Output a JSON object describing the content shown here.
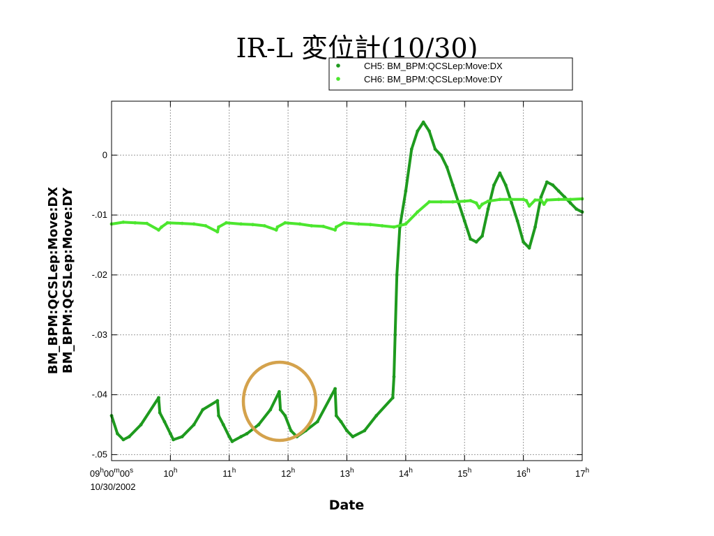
{
  "slide": {
    "title": "IR-L 変位計(10/30)"
  },
  "chart_data": {
    "type": "scatter",
    "xlabel": "Date",
    "ylabel_lines": [
      "BM_BPM:QCSLep:Move:DX",
      "BM_BPM:QCSLep:Move:DY"
    ],
    "x_unit": "hours",
    "xlim": [
      9,
      17
    ],
    "ylim": [
      -0.051,
      0.009
    ],
    "grid": true,
    "legend_position": "top-right",
    "x_ticks": [
      {
        "value": 9,
        "main": "09",
        "parts": [
          "h",
          "00",
          "m",
          "00",
          "s"
        ],
        "sub": "10/30/2002"
      },
      {
        "value": 10,
        "main": "10",
        "parts": [
          "h"
        ]
      },
      {
        "value": 11,
        "main": "11",
        "parts": [
          "h"
        ]
      },
      {
        "value": 12,
        "main": "12",
        "parts": [
          "h"
        ]
      },
      {
        "value": 13,
        "main": "13",
        "parts": [
          "h"
        ]
      },
      {
        "value": 14,
        "main": "14",
        "parts": [
          "h"
        ]
      },
      {
        "value": 15,
        "main": "15",
        "parts": [
          "h"
        ]
      },
      {
        "value": 16,
        "main": "16",
        "parts": [
          "h"
        ]
      },
      {
        "value": 17,
        "main": "17",
        "parts": [
          "h"
        ]
      }
    ],
    "y_ticks": [
      {
        "value": 0,
        "label": "0"
      },
      {
        "value": -0.01,
        "label": "-.01"
      },
      {
        "value": -0.02,
        "label": "-.02"
      },
      {
        "value": -0.03,
        "label": "-.03"
      },
      {
        "value": -0.04,
        "label": "-.04"
      },
      {
        "value": -0.05,
        "label": "-.05"
      }
    ],
    "series": [
      {
        "name": "CH5: BM_BPM:QCSLep:Move:DX",
        "color": "#1e9a1e",
        "x": [
          9.0,
          9.1,
          9.2,
          9.3,
          9.5,
          9.8,
          9.82,
          9.9,
          10.0,
          10.05,
          10.2,
          10.4,
          10.55,
          10.8,
          10.82,
          10.9,
          11.0,
          11.05,
          11.2,
          11.3,
          11.5,
          11.7,
          11.85,
          11.87,
          11.95,
          12.05,
          12.15,
          12.3,
          12.5,
          12.8,
          12.82,
          12.9,
          13.0,
          13.1,
          13.3,
          13.5,
          13.78,
          13.8,
          13.82,
          13.85,
          13.9,
          14.0,
          14.1,
          14.2,
          14.3,
          14.4,
          14.5,
          14.6,
          14.7,
          14.8,
          14.9,
          15.0,
          15.1,
          15.2,
          15.3,
          15.4,
          15.5,
          15.6,
          15.7,
          15.8,
          15.9,
          16.0,
          16.1,
          16.2,
          16.3,
          16.4,
          16.5,
          16.6,
          16.7,
          16.8,
          16.9,
          17.0
        ],
        "y": [
          -0.0435,
          -0.0465,
          -0.0475,
          -0.047,
          -0.045,
          -0.0405,
          -0.043,
          -0.0445,
          -0.0465,
          -0.0475,
          -0.047,
          -0.045,
          -0.0425,
          -0.041,
          -0.0435,
          -0.045,
          -0.047,
          -0.0478,
          -0.047,
          -0.0465,
          -0.045,
          -0.0425,
          -0.0395,
          -0.0425,
          -0.0435,
          -0.046,
          -0.047,
          -0.046,
          -0.0445,
          -0.039,
          -0.0435,
          -0.0445,
          -0.046,
          -0.047,
          -0.046,
          -0.0435,
          -0.0405,
          -0.037,
          -0.03,
          -0.02,
          -0.012,
          -0.006,
          0.001,
          0.004,
          0.0055,
          0.004,
          0.001,
          0.0,
          -0.002,
          -0.005,
          -0.008,
          -0.011,
          -0.014,
          -0.0145,
          -0.0135,
          -0.009,
          -0.005,
          -0.003,
          -0.005,
          -0.008,
          -0.011,
          -0.0145,
          -0.0155,
          -0.012,
          -0.007,
          -0.0045,
          -0.005,
          -0.006,
          -0.007,
          -0.008,
          -0.009,
          -0.0095
        ]
      },
      {
        "name": "CH6: BM_BPM:QCSLep:Move:DY",
        "color": "#4ce62e",
        "x": [
          9.0,
          9.2,
          9.4,
          9.6,
          9.8,
          9.85,
          9.95,
          10.2,
          10.4,
          10.6,
          10.8,
          10.82,
          10.95,
          11.2,
          11.4,
          11.6,
          11.8,
          11.82,
          11.95,
          12.2,
          12.4,
          12.6,
          12.8,
          12.82,
          12.95,
          13.2,
          13.4,
          13.6,
          13.8,
          14.0,
          14.2,
          14.4,
          14.6,
          14.8,
          15.0,
          15.1,
          15.2,
          15.25,
          15.3,
          15.4,
          15.6,
          15.8,
          16.0,
          16.05,
          16.1,
          16.2,
          16.3,
          16.35,
          16.4,
          16.6,
          16.8,
          17.0
        ],
        "y": [
          -0.0115,
          -0.0112,
          -0.0113,
          -0.0114,
          -0.0125,
          -0.012,
          -0.0113,
          -0.0114,
          -0.0115,
          -0.0118,
          -0.0128,
          -0.012,
          -0.0113,
          -0.0115,
          -0.0116,
          -0.0118,
          -0.0125,
          -0.012,
          -0.0113,
          -0.0115,
          -0.0118,
          -0.0119,
          -0.0125,
          -0.012,
          -0.0113,
          -0.0115,
          -0.0116,
          -0.0118,
          -0.012,
          -0.0115,
          -0.0095,
          -0.0078,
          -0.0078,
          -0.0078,
          -0.0077,
          -0.0076,
          -0.008,
          -0.0088,
          -0.0082,
          -0.0077,
          -0.0074,
          -0.0074,
          -0.0074,
          -0.0076,
          -0.0085,
          -0.0075,
          -0.0075,
          -0.0082,
          -0.0075,
          -0.0074,
          -0.0074,
          -0.0073
        ]
      }
    ]
  }
}
